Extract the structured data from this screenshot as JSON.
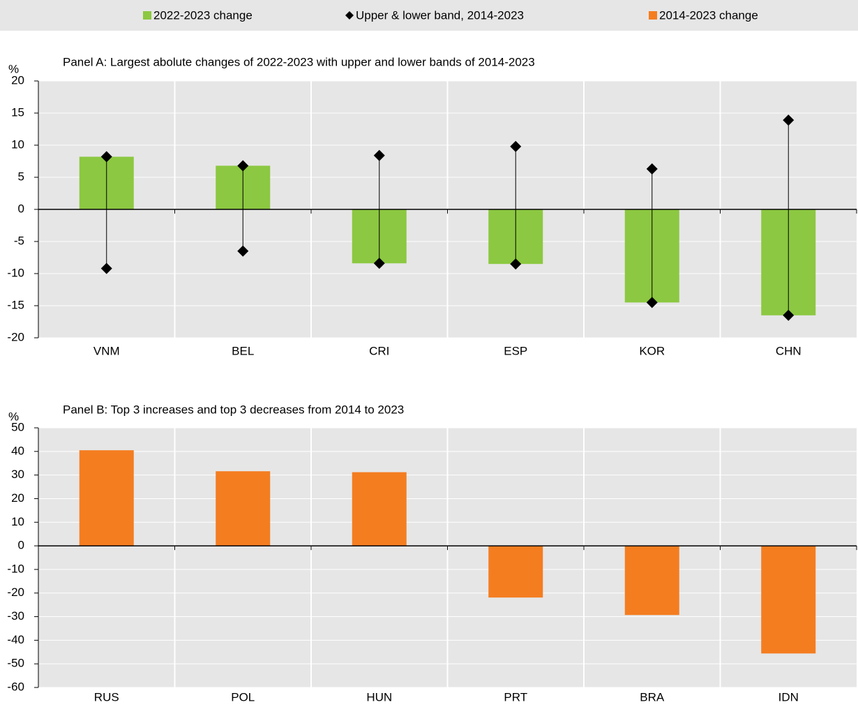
{
  "chart_data": [
    {
      "type": "bar",
      "title": "Panel A: Largest abolute changes of 2022-2023 with upper and lower bands of 2014-2023",
      "y_label": "%",
      "categories": [
        "VNM",
        "BEL",
        "CRI",
        "ESP",
        "KOR",
        "CHN"
      ],
      "series": [
        {
          "name": "2022-2023 change",
          "color": "#8cc841",
          "values": [
            8.2,
            6.8,
            -8.4,
            -8.5,
            -14.5,
            -16.5
          ]
        },
        {
          "name": "Upper & lower band, 2014-2023",
          "color": "#000000",
          "upper": [
            8.2,
            6.8,
            8.4,
            9.8,
            6.3,
            13.9
          ],
          "lower": [
            -9.2,
            -6.5,
            -8.4,
            -8.5,
            -14.5,
            -16.5
          ]
        }
      ],
      "ylim": [
        -20,
        20
      ],
      "yticks": [
        -20,
        -15,
        -10,
        -5,
        0,
        5,
        10,
        15,
        20
      ],
      "grid": true
    },
    {
      "type": "bar",
      "title": "Panel B: Top 3 increases and top 3 decreases from 2014 to 2023",
      "y_label": "%",
      "categories": [
        "RUS",
        "POL",
        "HUN",
        "PRT",
        "BRA",
        "IDN"
      ],
      "series": [
        {
          "name": "2014-2023 change",
          "color": "#f47d20",
          "values": [
            40.5,
            31.6,
            31.2,
            -21.9,
            -29.3,
            -45.6
          ]
        }
      ],
      "ylim": [
        -60,
        50
      ],
      "yticks": [
        -60,
        -50,
        -40,
        -30,
        -20,
        -10,
        0,
        10,
        20,
        30,
        40,
        50
      ],
      "grid": true
    }
  ]
}
